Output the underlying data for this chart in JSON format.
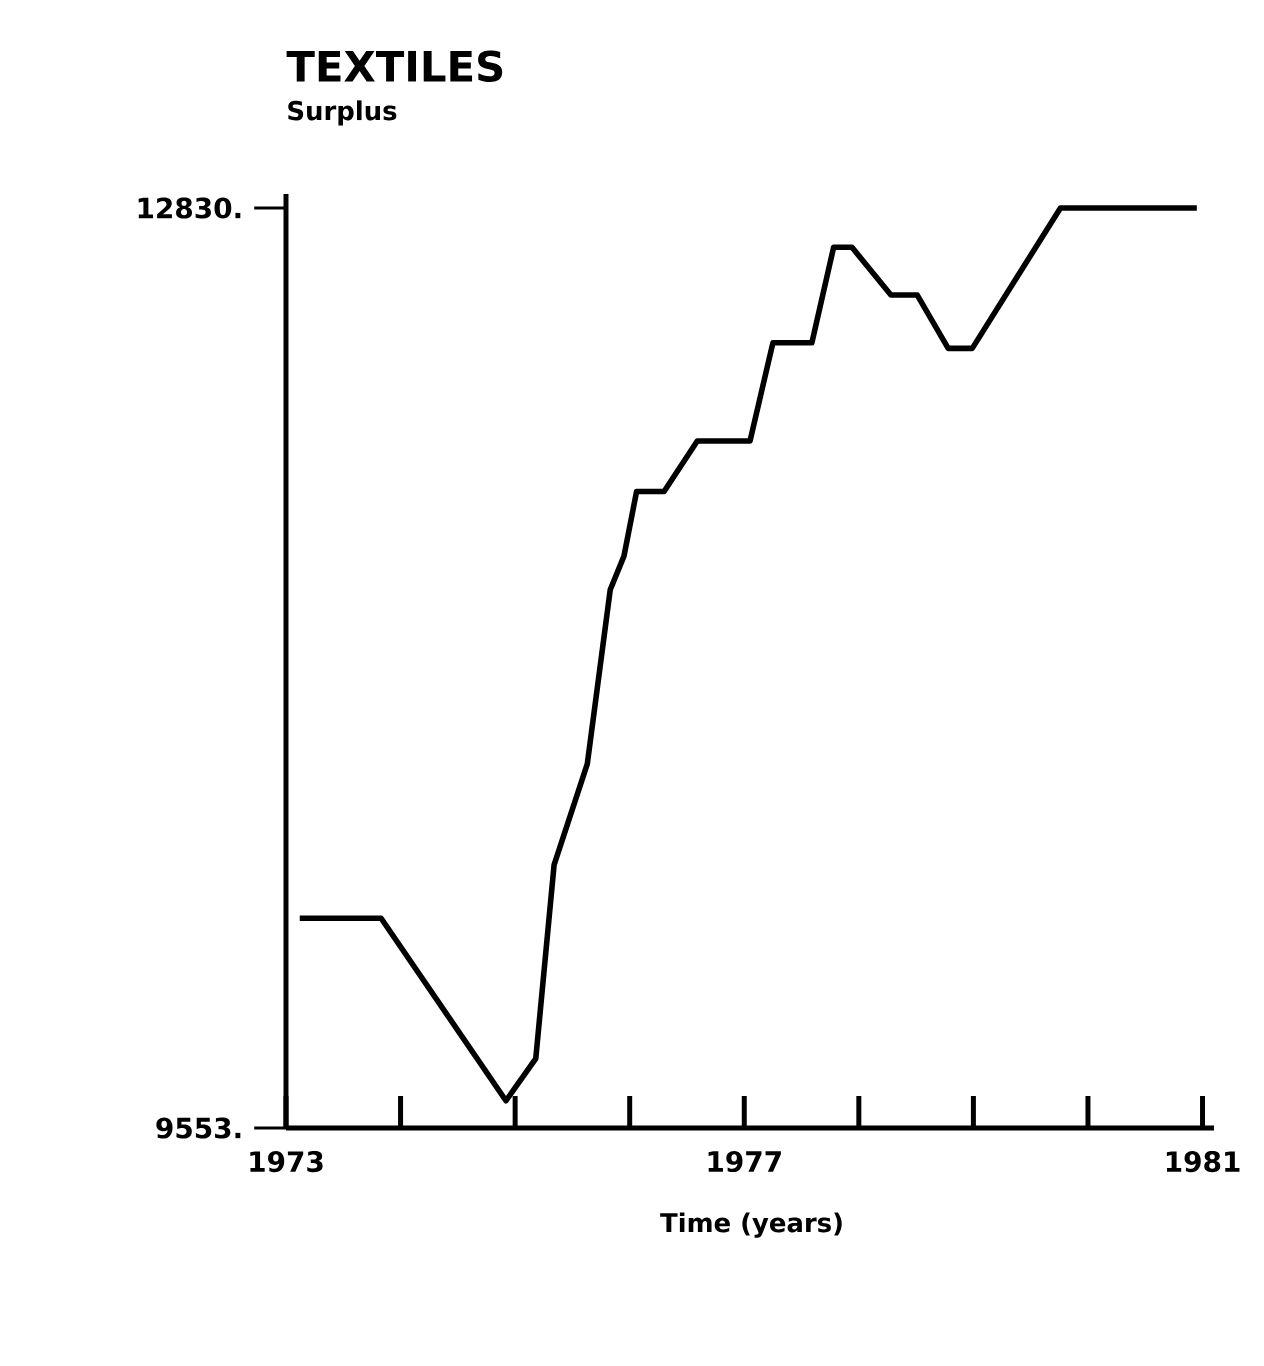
{
  "chart_data": {
    "type": "line",
    "title": "TEXTILES",
    "ylabel": "Surplus",
    "xlabel": "Time (years)",
    "series": [
      {
        "color": "#000000",
        "x": [
          1973.12,
          1973.83,
          1974.92,
          1975.18,
          1975.34,
          1975.63,
          1975.83,
          1975.95,
          1976.06,
          1976.3,
          1976.59,
          1977.05,
          1977.25,
          1977.59,
          1977.78,
          1977.94,
          1978.28,
          1978.51,
          1978.78,
          1978.99,
          1979.76,
          1980.95
        ],
        "values": [
          10300,
          10300,
          9650,
          9800,
          10490,
          10850,
          11470,
          11590,
          11820,
          11820,
          12000,
          12000,
          12350,
          12350,
          12690,
          12690,
          12520,
          12520,
          12330,
          12330,
          12830,
          12830
        ]
      }
    ],
    "xlim": [
      1973,
      1981.1
    ],
    "ylim": [
      9553,
      12880
    ],
    "xticks": [
      1973,
      {
        "value": 1974,
        "label": null
      },
      {
        "value": 1975,
        "label": null
      },
      {
        "value": 1976,
        "label": null
      },
      1977,
      {
        "value": 1978,
        "label": null
      },
      {
        "value": 1979,
        "label": null
      },
      {
        "value": 1980,
        "label": null
      },
      1981
    ],
    "yticks": [
      {
        "value": 9553,
        "label": "9553."
      },
      {
        "value": 12830,
        "label": "12830."
      }
    ]
  }
}
